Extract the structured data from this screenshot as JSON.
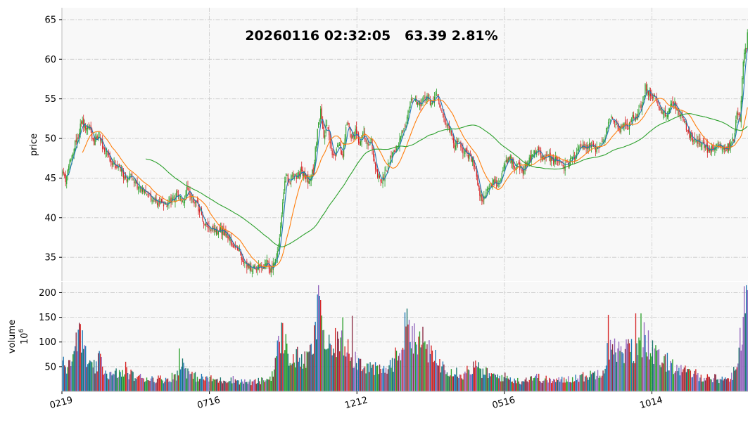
{
  "chart_data": {
    "type": "candlestick",
    "title": "20260116 02:32:05   63.39 2.81%",
    "panels": {
      "price": {
        "ylabel": "price",
        "yticks": [
          35,
          40,
          45,
          50,
          55,
          60,
          65
        ],
        "ylim": [
          32,
          66.5
        ]
      },
      "volume": {
        "ylabel": "volume",
        "unit_label": "10^6",
        "unit_base": "10",
        "unit_exp": "6",
        "yticks": [
          50,
          100,
          150,
          200
        ],
        "ylim": [
          0,
          222
        ]
      }
    },
    "x_tick_labels": [
      "0219",
      "0716",
      "1212",
      "0516",
      "1014"
    ],
    "price_anchors": [
      [
        0,
        45.5
      ],
      [
        3,
        44.8
      ],
      [
        6,
        46.5
      ],
      [
        10,
        48.5
      ],
      [
        14,
        50.0
      ],
      [
        18,
        52.0
      ],
      [
        22,
        51.5
      ],
      [
        26,
        51.0
      ],
      [
        30,
        49.5
      ],
      [
        34,
        50.5
      ],
      [
        38,
        49.0
      ],
      [
        42,
        48.5
      ],
      [
        46,
        47.0
      ],
      [
        50,
        46.5
      ],
      [
        55,
        46.0
      ],
      [
        60,
        45.0
      ],
      [
        65,
        45.5
      ],
      [
        70,
        44.0
      ],
      [
        75,
        43.5
      ],
      [
        80,
        43.0
      ],
      [
        85,
        42.5
      ],
      [
        90,
        42.0
      ],
      [
        95,
        41.5
      ],
      [
        100,
        41.8
      ],
      [
        105,
        42.5
      ],
      [
        110,
        43.0
      ],
      [
        115,
        42.0
      ],
      [
        118,
        43.5
      ],
      [
        122,
        42.5
      ],
      [
        126,
        42.0
      ],
      [
        130,
        41.0
      ],
      [
        134,
        39.5
      ],
      [
        138,
        38.5
      ],
      [
        142,
        38.8
      ],
      [
        146,
        38.2
      ],
      [
        150,
        38.5
      ],
      [
        155,
        38.0
      ],
      [
        158,
        37.5
      ],
      [
        162,
        36.5
      ],
      [
        166,
        36.0
      ],
      [
        170,
        35.0
      ],
      [
        174,
        34.0
      ],
      [
        178,
        33.8
      ],
      [
        182,
        33.5
      ],
      [
        186,
        34.0
      ],
      [
        190,
        33.5
      ],
      [
        194,
        34.5
      ],
      [
        197,
        33.5
      ],
      [
        200,
        34.0
      ],
      [
        203,
        35.0
      ],
      [
        206,
        37.0
      ],
      [
        209,
        42.0
      ],
      [
        212,
        45.5
      ],
      [
        215,
        44.0
      ],
      [
        218,
        45.5
      ],
      [
        222,
        45.0
      ],
      [
        226,
        45.8
      ],
      [
        230,
        45.5
      ],
      [
        234,
        44.5
      ],
      [
        238,
        46.0
      ],
      [
        242,
        51.0
      ],
      [
        245,
        53.5
      ],
      [
        248,
        50.0
      ],
      [
        251,
        52.0
      ],
      [
        254,
        49.0
      ],
      [
        258,
        47.5
      ],
      [
        262,
        49.5
      ],
      [
        266,
        48.0
      ],
      [
        270,
        52.0
      ],
      [
        274,
        50.0
      ],
      [
        278,
        51.0
      ],
      [
        282,
        49.5
      ],
      [
        286,
        50.5
      ],
      [
        290,
        49.0
      ],
      [
        293,
        50.0
      ],
      [
        296,
        47.0
      ],
      [
        299,
        45.5
      ],
      [
        302,
        44.5
      ],
      [
        306,
        45.5
      ],
      [
        310,
        47.0
      ],
      [
        314,
        48.5
      ],
      [
        318,
        49.0
      ],
      [
        322,
        50.5
      ],
      [
        326,
        52.0
      ],
      [
        330,
        54.5
      ],
      [
        334,
        55.0
      ],
      [
        338,
        54.0
      ],
      [
        342,
        55.0
      ],
      [
        346,
        55.5
      ],
      [
        350,
        54.0
      ],
      [
        354,
        55.5
      ],
      [
        357,
        55.0
      ],
      [
        360,
        53.0
      ],
      [
        364,
        51.5
      ],
      [
        368,
        51.0
      ],
      [
        372,
        49.0
      ],
      [
        376,
        49.5
      ],
      [
        380,
        48.5
      ],
      [
        384,
        48.0
      ],
      [
        388,
        47.5
      ],
      [
        392,
        46.0
      ],
      [
        395,
        43.5
      ],
      [
        398,
        42.0
      ],
      [
        401,
        43.0
      ],
      [
        405,
        44.0
      ],
      [
        409,
        44.5
      ],
      [
        413,
        44.0
      ],
      [
        417,
        45.5
      ],
      [
        421,
        47.0
      ],
      [
        425,
        47.5
      ],
      [
        429,
        46.5
      ],
      [
        433,
        46.5
      ],
      [
        437,
        46.0
      ],
      [
        441,
        47.0
      ],
      [
        445,
        47.5
      ],
      [
        449,
        48.5
      ],
      [
        453,
        48.0
      ],
      [
        457,
        47.5
      ],
      [
        461,
        48.0
      ],
      [
        465,
        47.0
      ],
      [
        469,
        47.5
      ],
      [
        473,
        47.0
      ],
      [
        477,
        46.5
      ],
      [
        481,
        47.0
      ],
      [
        485,
        47.5
      ],
      [
        489,
        48.5
      ],
      [
        493,
        49.0
      ],
      [
        497,
        48.5
      ],
      [
        501,
        49.5
      ],
      [
        505,
        48.5
      ],
      [
        509,
        49.0
      ],
      [
        513,
        49.5
      ],
      [
        517,
        51.5
      ],
      [
        521,
        53.0
      ],
      [
        525,
        52.0
      ],
      [
        529,
        51.0
      ],
      [
        533,
        52.0
      ],
      [
        537,
        51.5
      ],
      [
        541,
        53.0
      ],
      [
        545,
        52.5
      ],
      [
        549,
        54.0
      ],
      [
        553,
        56.5
      ],
      [
        557,
        55.5
      ],
      [
        561,
        55.5
      ],
      [
        565,
        54.0
      ],
      [
        569,
        53.5
      ],
      [
        573,
        53.0
      ],
      [
        577,
        54.0
      ],
      [
        581,
        54.5
      ],
      [
        585,
        53.0
      ],
      [
        589,
        52.5
      ],
      [
        593,
        51.0
      ],
      [
        597,
        50.0
      ],
      [
        601,
        49.5
      ],
      [
        605,
        49.5
      ],
      [
        609,
        49.0
      ],
      [
        613,
        48.5
      ],
      [
        617,
        49.0
      ],
      [
        621,
        49.5
      ],
      [
        625,
        49.0
      ],
      [
        629,
        48.8
      ],
      [
        633,
        49.0
      ],
      [
        637,
        50.0
      ],
      [
        640,
        53.0
      ],
      [
        643,
        52.5
      ],
      [
        646,
        60.0
      ],
      [
        649,
        61.5
      ],
      [
        650,
        63.39
      ]
    ],
    "volume_anchors": [
      [
        0,
        65
      ],
      [
        4,
        55
      ],
      [
        8,
        75
      ],
      [
        12,
        95
      ],
      [
        16,
        110
      ],
      [
        20,
        90
      ],
      [
        24,
        55
      ],
      [
        28,
        45
      ],
      [
        32,
        50
      ],
      [
        36,
        65
      ],
      [
        40,
        40
      ],
      [
        44,
        35
      ],
      [
        48,
        30
      ],
      [
        52,
        38
      ],
      [
        56,
        32
      ],
      [
        60,
        45
      ],
      [
        64,
        35
      ],
      [
        68,
        30
      ],
      [
        72,
        28
      ],
      [
        80,
        27
      ],
      [
        90,
        25
      ],
      [
        100,
        25
      ],
      [
        110,
        35
      ],
      [
        114,
        60
      ],
      [
        118,
        40
      ],
      [
        124,
        30
      ],
      [
        130,
        28
      ],
      [
        140,
        25
      ],
      [
        150,
        22
      ],
      [
        160,
        25
      ],
      [
        170,
        20
      ],
      [
        180,
        18
      ],
      [
        190,
        22
      ],
      [
        196,
        25
      ],
      [
        200,
        40
      ],
      [
        204,
        80
      ],
      [
        208,
        120
      ],
      [
        212,
        90
      ],
      [
        218,
        60
      ],
      [
        224,
        70
      ],
      [
        230,
        60
      ],
      [
        236,
        80
      ],
      [
        240,
        110
      ],
      [
        243,
        200
      ],
      [
        246,
        150
      ],
      [
        250,
        90
      ],
      [
        256,
        80
      ],
      [
        262,
        110
      ],
      [
        266,
        90
      ],
      [
        270,
        100
      ],
      [
        276,
        70
      ],
      [
        282,
        60
      ],
      [
        290,
        50
      ],
      [
        296,
        45
      ],
      [
        302,
        40
      ],
      [
        308,
        45
      ],
      [
        314,
        60
      ],
      [
        320,
        80
      ],
      [
        326,
        120
      ],
      [
        330,
        140
      ],
      [
        334,
        110
      ],
      [
        338,
        90
      ],
      [
        342,
        100
      ],
      [
        346,
        90
      ],
      [
        350,
        70
      ],
      [
        356,
        60
      ],
      [
        362,
        50
      ],
      [
        368,
        45
      ],
      [
        374,
        40
      ],
      [
        380,
        35
      ],
      [
        386,
        45
      ],
      [
        392,
        50
      ],
      [
        398,
        40
      ],
      [
        404,
        35
      ],
      [
        410,
        30
      ],
      [
        418,
        30
      ],
      [
        426,
        25
      ],
      [
        434,
        20
      ],
      [
        440,
        25
      ],
      [
        448,
        30
      ],
      [
        456,
        25
      ],
      [
        464,
        22
      ],
      [
        472,
        22
      ],
      [
        480,
        25
      ],
      [
        488,
        28
      ],
      [
        496,
        30
      ],
      [
        504,
        35
      ],
      [
        510,
        40
      ],
      [
        516,
        55
      ],
      [
        520,
        80
      ],
      [
        524,
        100
      ],
      [
        528,
        80
      ],
      [
        532,
        70
      ],
      [
        538,
        90
      ],
      [
        544,
        70
      ],
      [
        548,
        90
      ],
      [
        552,
        120
      ],
      [
        556,
        100
      ],
      [
        560,
        80
      ],
      [
        564,
        70
      ],
      [
        570,
        55
      ],
      [
        576,
        60
      ],
      [
        582,
        50
      ],
      [
        588,
        40
      ],
      [
        594,
        38
      ],
      [
        600,
        35
      ],
      [
        606,
        30
      ],
      [
        612,
        28
      ],
      [
        618,
        27
      ],
      [
        624,
        25
      ],
      [
        630,
        26
      ],
      [
        636,
        30
      ],
      [
        640,
        60
      ],
      [
        643,
        100
      ],
      [
        646,
        140
      ],
      [
        648,
        190
      ],
      [
        650,
        210
      ]
    ],
    "volume_spikes": [
      [
        15,
        125
      ],
      [
        22,
        92
      ],
      [
        111,
        87
      ],
      [
        115,
        58
      ],
      [
        243,
        215
      ],
      [
        245,
        185
      ],
      [
        266,
        150
      ],
      [
        275,
        153
      ],
      [
        325,
        160
      ],
      [
        342,
        131
      ],
      [
        517,
        98
      ],
      [
        518,
        155
      ],
      [
        544,
        158
      ],
      [
        547,
        109
      ],
      [
        549,
        158
      ],
      [
        647,
        213
      ],
      [
        649,
        215
      ],
      [
        650,
        205
      ]
    ],
    "moving_averages": [
      {
        "window": 5,
        "color": "#1f77b4"
      },
      {
        "window": 20,
        "color": "#ff7f0e"
      },
      {
        "window": 80,
        "color": "#2ca02c"
      }
    ],
    "colors": {
      "up": "#2ca02c",
      "down": "#d62728",
      "panel_bg": "#f8f8f8",
      "grid": "#c8c8c8",
      "volume_palette": [
        "#1f77b4",
        "#d62728",
        "#2ca02c",
        "#9467bd",
        "#17736b",
        "#8c2d46"
      ]
    },
    "grid": true
  }
}
